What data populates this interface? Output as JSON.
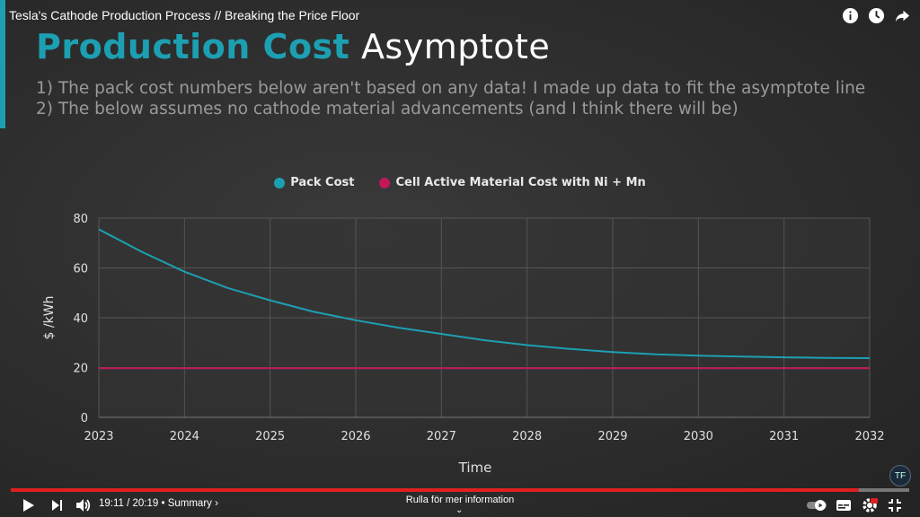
{
  "video": {
    "title": "Tesla's Cathode Production Process // Breaking the Price Floor",
    "top_icons": [
      "info-icon",
      "clock-icon",
      "share-icon"
    ]
  },
  "slide": {
    "title_accent": "Production Cost",
    "title_rest": "Asymptote",
    "notes": [
      "1) The pack cost numbers below aren't based on any data! I made up data to fit the asymptote line",
      "2) The below assumes no cathode material advancements (and I think there will be)"
    ],
    "colors": {
      "accent": "#1d9fb2",
      "pink": "#c2185b",
      "background": "#2d2d2d"
    }
  },
  "chart_data": {
    "type": "line",
    "xlabel": "Time",
    "ylabel": "$ /kWh",
    "ylim": [
      0,
      80
    ],
    "yticks": [
      0,
      20,
      40,
      60,
      80
    ],
    "xticks": [
      "2023",
      "2024",
      "2025",
      "2026",
      "2027",
      "2028",
      "2029",
      "2030",
      "2031",
      "2032"
    ],
    "grid": true,
    "legend_position": "top",
    "series": [
      {
        "name": "Pack Cost",
        "color": "#1d9fb2",
        "x": [
          2023,
          2023.5,
          2024,
          2024.5,
          2025,
          2025.5,
          2026,
          2026.5,
          2027,
          2027.5,
          2028,
          2028.5,
          2029,
          2029.5,
          2030,
          2030.5,
          2031,
          2031.5,
          2032
        ],
        "values": [
          75.5,
          66.5,
          58.5,
          52,
          47,
          42.5,
          39,
          36,
          33.5,
          31,
          29,
          27.5,
          26.2,
          25.3,
          24.8,
          24.4,
          24.1,
          23.9,
          23.8
        ]
      },
      {
        "name": "Cell Active Material Cost with Ni + Mn",
        "color": "#c2185b",
        "x": [
          2023,
          2032
        ],
        "values": [
          19.7,
          19.7
        ]
      }
    ]
  },
  "player": {
    "time": "19:11 / 20:19 • Summary ›",
    "scroll_hint": "Rulla för mer information",
    "scroll_chevron": "⌄",
    "logo_text": "TF",
    "progress": 0.944,
    "colors": {
      "progress": "#e02020"
    }
  }
}
